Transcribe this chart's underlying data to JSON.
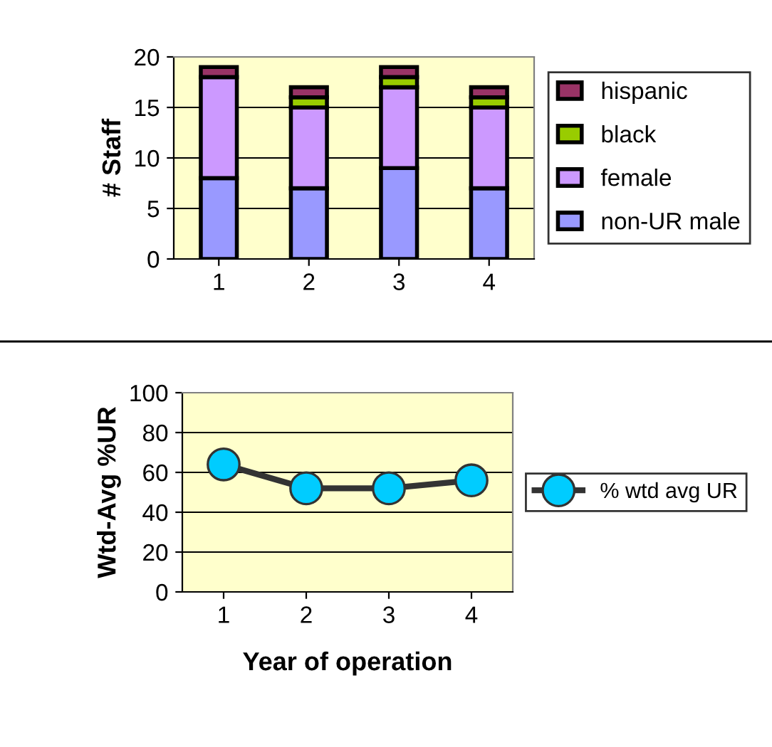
{
  "chart_data": [
    {
      "type": "bar",
      "stacked": true,
      "ylabel": "# Staff",
      "categories": [
        "1",
        "2",
        "3",
        "4"
      ],
      "ylim": [
        0,
        20
      ],
      "yticks": [
        0,
        5,
        10,
        15,
        20
      ],
      "grid": "y",
      "legend": "right",
      "series": [
        {
          "name": "non-UR male",
          "color": "#9999ff",
          "values": [
            8,
            7,
            9,
            7
          ]
        },
        {
          "name": "female",
          "color": "#cc99ff",
          "values": [
            10,
            8,
            8,
            8
          ]
        },
        {
          "name": "black",
          "color": "#99cc00",
          "values": [
            0,
            1,
            1,
            1
          ]
        },
        {
          "name": "hispanic",
          "color": "#993366",
          "values": [
            1,
            1,
            1,
            1
          ]
        }
      ]
    },
    {
      "type": "line",
      "ylabel": "Wtd-Avg %UR",
      "xlabel": "Year of operation",
      "categories": [
        "1",
        "2",
        "3",
        "4"
      ],
      "ylim": [
        0,
        100
      ],
      "yticks": [
        0,
        20,
        40,
        60,
        80,
        100
      ],
      "grid": "y",
      "legend": "right",
      "marker": "circle",
      "line_style": "solid",
      "series": [
        {
          "name": "% wtd avg UR",
          "color": "#333333",
          "values": [
            64,
            52,
            52,
            56
          ]
        }
      ]
    }
  ]
}
